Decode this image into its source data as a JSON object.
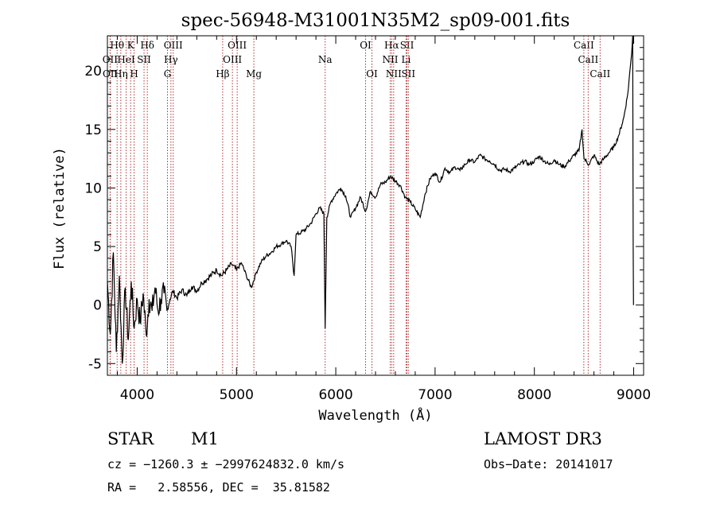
{
  "chart_data": {
    "type": "line",
    "title": "spec-56948-M31001N35M2_sp09-001.fits",
    "xlabel": "Wavelength (Å)",
    "ylabel": "Flux (relative)",
    "xlim": [
      3700,
      9100
    ],
    "ylim": [
      -6,
      23
    ],
    "xticks": [
      4000,
      5000,
      6000,
      7000,
      8000,
      9000
    ],
    "yticks": [
      -5,
      0,
      5,
      10,
      15,
      20
    ],
    "line_color": "#000000",
    "marker_color": "#b03030",
    "series": [
      {
        "values": [
          [
            3700,
            2.0
          ],
          [
            3730,
            -2.5
          ],
          [
            3760,
            4.5
          ],
          [
            3790,
            -4.0
          ],
          [
            3820,
            2.5
          ],
          [
            3850,
            -5.0
          ],
          [
            3880,
            1.5
          ],
          [
            3910,
            -3.0
          ],
          [
            3940,
            2.0
          ],
          [
            3970,
            -2.0
          ],
          [
            4000,
            0.5
          ],
          [
            4030,
            -1.5
          ],
          [
            4060,
            1.0
          ],
          [
            4090,
            -2.5
          ],
          [
            4120,
            0.5
          ],
          [
            4150,
            -0.5
          ],
          [
            4180,
            1.5
          ],
          [
            4210,
            -0.5
          ],
          [
            4240,
            0.5
          ],
          [
            4270,
            1.0
          ],
          [
            4300,
            -0.5
          ],
          [
            4330,
            0.5
          ],
          [
            4360,
            1.2
          ],
          [
            4400,
            0.6
          ],
          [
            4450,
            1.3
          ],
          [
            4500,
            0.8
          ],
          [
            4550,
            1.6
          ],
          [
            4600,
            1.2
          ],
          [
            4650,
            1.9
          ],
          [
            4700,
            2.2
          ],
          [
            4750,
            2.6
          ],
          [
            4800,
            3.0
          ],
          [
            4850,
            2.5
          ],
          [
            4900,
            3.0
          ],
          [
            4950,
            3.5
          ],
          [
            5000,
            3.0
          ],
          [
            5050,
            3.6
          ],
          [
            5100,
            2.5
          ],
          [
            5150,
            1.5
          ],
          [
            5200,
            2.8
          ],
          [
            5250,
            3.7
          ],
          [
            5300,
            4.2
          ],
          [
            5350,
            4.5
          ],
          [
            5400,
            5.0
          ],
          [
            5450,
            5.2
          ],
          [
            5500,
            5.5
          ],
          [
            5550,
            5.0
          ],
          [
            5580,
            2.5
          ],
          [
            5600,
            6.0
          ],
          [
            5650,
            6.2
          ],
          [
            5700,
            6.5
          ],
          [
            5750,
            7.0
          ],
          [
            5800,
            7.8
          ],
          [
            5840,
            8.3
          ],
          [
            5880,
            7.8
          ],
          [
            5893,
            -2.0
          ],
          [
            5910,
            7.5
          ],
          [
            5950,
            8.8
          ],
          [
            6000,
            9.5
          ],
          [
            6050,
            10.0
          ],
          [
            6100,
            9.3
          ],
          [
            6150,
            7.5
          ],
          [
            6200,
            8.3
          ],
          [
            6250,
            9.2
          ],
          [
            6300,
            8.0
          ],
          [
            6350,
            9.7
          ],
          [
            6400,
            9.2
          ],
          [
            6450,
            10.3
          ],
          [
            6500,
            10.5
          ],
          [
            6550,
            11.0
          ],
          [
            6600,
            10.6
          ],
          [
            6650,
            10.2
          ],
          [
            6700,
            9.2
          ],
          [
            6750,
            8.8
          ],
          [
            6800,
            8.2
          ],
          [
            6850,
            7.5
          ],
          [
            6900,
            9.5
          ],
          [
            6950,
            10.8
          ],
          [
            7000,
            11.3
          ],
          [
            7050,
            10.5
          ],
          [
            7100,
            11.7
          ],
          [
            7150,
            11.3
          ],
          [
            7200,
            11.8
          ],
          [
            7250,
            11.5
          ],
          [
            7300,
            12.0
          ],
          [
            7350,
            12.4
          ],
          [
            7400,
            12.2
          ],
          [
            7450,
            12.8
          ],
          [
            7500,
            12.5
          ],
          [
            7550,
            12.3
          ],
          [
            7600,
            12.0
          ],
          [
            7650,
            11.5
          ],
          [
            7700,
            11.6
          ],
          [
            7750,
            11.4
          ],
          [
            7800,
            11.7
          ],
          [
            7850,
            12.0
          ],
          [
            7900,
            12.3
          ],
          [
            7950,
            12.0
          ],
          [
            8000,
            12.3
          ],
          [
            8050,
            12.7
          ],
          [
            8100,
            12.3
          ],
          [
            8150,
            12.0
          ],
          [
            8200,
            12.4
          ],
          [
            8250,
            12.0
          ],
          [
            8300,
            11.8
          ],
          [
            8350,
            12.3
          ],
          [
            8400,
            12.8
          ],
          [
            8450,
            13.2
          ],
          [
            8480,
            15.0
          ],
          [
            8500,
            12.5
          ],
          [
            8550,
            12.0
          ],
          [
            8600,
            12.8
          ],
          [
            8650,
            12.0
          ],
          [
            8700,
            12.5
          ],
          [
            8750,
            13.0
          ],
          [
            8800,
            13.5
          ],
          [
            8850,
            14.5
          ],
          [
            8900,
            16.0
          ],
          [
            8940,
            18.0
          ],
          [
            8960,
            19.8
          ],
          [
            8980,
            21.5
          ],
          [
            8990,
            23.0
          ],
          [
            8995,
            5.0
          ],
          [
            8998,
            0.0
          ]
        ]
      }
    ],
    "lines": [
      {
        "label": "Hθ",
        "x": 3798,
        "row": 0
      },
      {
        "label": "K",
        "x": 3934,
        "row": 0
      },
      {
        "label": "Hδ",
        "x": 4102,
        "row": 0
      },
      {
        "label": "OIII",
        "x": 4363,
        "row": 0
      },
      {
        "label": "OIII",
        "x": 5007,
        "row": 0
      },
      {
        "label": "OI",
        "x": 6300,
        "row": 0
      },
      {
        "label": "Hα",
        "x": 6563,
        "row": 0
      },
      {
        "label": "SII",
        "x": 6717,
        "row": 0
      },
      {
        "label": "CaII",
        "x": 8498,
        "row": 0
      },
      {
        "label": "OII",
        "x": 3727,
        "row": 1
      },
      {
        "label": "HeI",
        "x": 3889,
        "row": 1
      },
      {
        "label": "SII",
        "x": 4069,
        "row": 1
      },
      {
        "label": "Hγ",
        "x": 4340,
        "row": 1
      },
      {
        "label": "OIII",
        "x": 4959,
        "row": 1
      },
      {
        "label": "Na",
        "x": 5893,
        "row": 1
      },
      {
        "label": "NII",
        "x": 6548,
        "row": 1
      },
      {
        "label": "Li",
        "x": 6708,
        "row": 1
      },
      {
        "label": "CaII",
        "x": 8542,
        "row": 1
      },
      {
        "label": "OII",
        "x": 3729,
        "row": 2
      },
      {
        "label": "Hη",
        "x": 3835,
        "row": 2
      },
      {
        "label": "H",
        "x": 3969,
        "row": 2
      },
      {
        "label": "G",
        "x": 4305,
        "row": 2
      },
      {
        "label": "Hβ",
        "x": 4861,
        "row": 2
      },
      {
        "label": "Mg",
        "x": 5175,
        "row": 2
      },
      {
        "label": "OI",
        "x": 6364,
        "row": 2
      },
      {
        "label": "NII",
        "x": 6583,
        "row": 2
      },
      {
        "label": "SII",
        "x": 6731,
        "row": 2
      },
      {
        "label": "CaII",
        "x": 8662,
        "row": 2
      }
    ]
  },
  "info": {
    "object_class": "STAR",
    "subclass": "M1",
    "survey": "LAMOST DR3",
    "cz": "cz = −1260.3 ± −2997624832.0 km/s",
    "obs_date": "Obs−Date: 20141017",
    "coords": "RA =   2.58556, DEC =  35.81582"
  }
}
